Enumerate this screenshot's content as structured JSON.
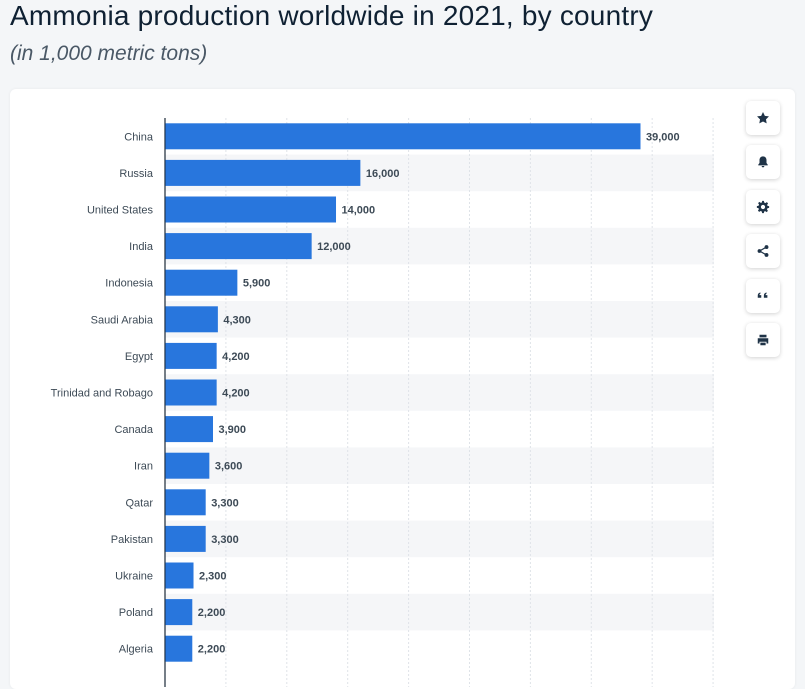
{
  "title": "Ammonia production worldwide in 2021, by country",
  "subtitle": "(in 1,000 metric tons)",
  "colors": {
    "bar": "#2876dd",
    "stripe": "#f5f6f8",
    "grid": "#dfe3e8",
    "axis": "#1b2a38"
  },
  "sidebar_icons": [
    "star-icon",
    "bell-icon",
    "gear-icon",
    "share-icon",
    "quote-icon",
    "print-icon"
  ],
  "chart_data": {
    "type": "bar",
    "orientation": "horizontal",
    "categories": [
      "China",
      "Russia",
      "United States",
      "India",
      "Indonesia",
      "Saudi Arabia",
      "Egypt",
      "Trinidad and Robago",
      "Canada",
      "Iran",
      "Qatar",
      "Pakistan",
      "Ukraine",
      "Poland",
      "Algeria"
    ],
    "values": [
      39000,
      16000,
      14000,
      12000,
      5900,
      4300,
      4200,
      4200,
      3900,
      3600,
      3300,
      3300,
      2300,
      2200,
      2200
    ],
    "value_labels": [
      "39,000",
      "16,000",
      "14,000",
      "12,000",
      "5,900",
      "4,300",
      "4,200",
      "4,200",
      "3,900",
      "3,600",
      "3,300",
      "3,300",
      "2,300",
      "2,200",
      "2,200"
    ],
    "xlim": [
      0,
      45000
    ],
    "grid": true
  }
}
